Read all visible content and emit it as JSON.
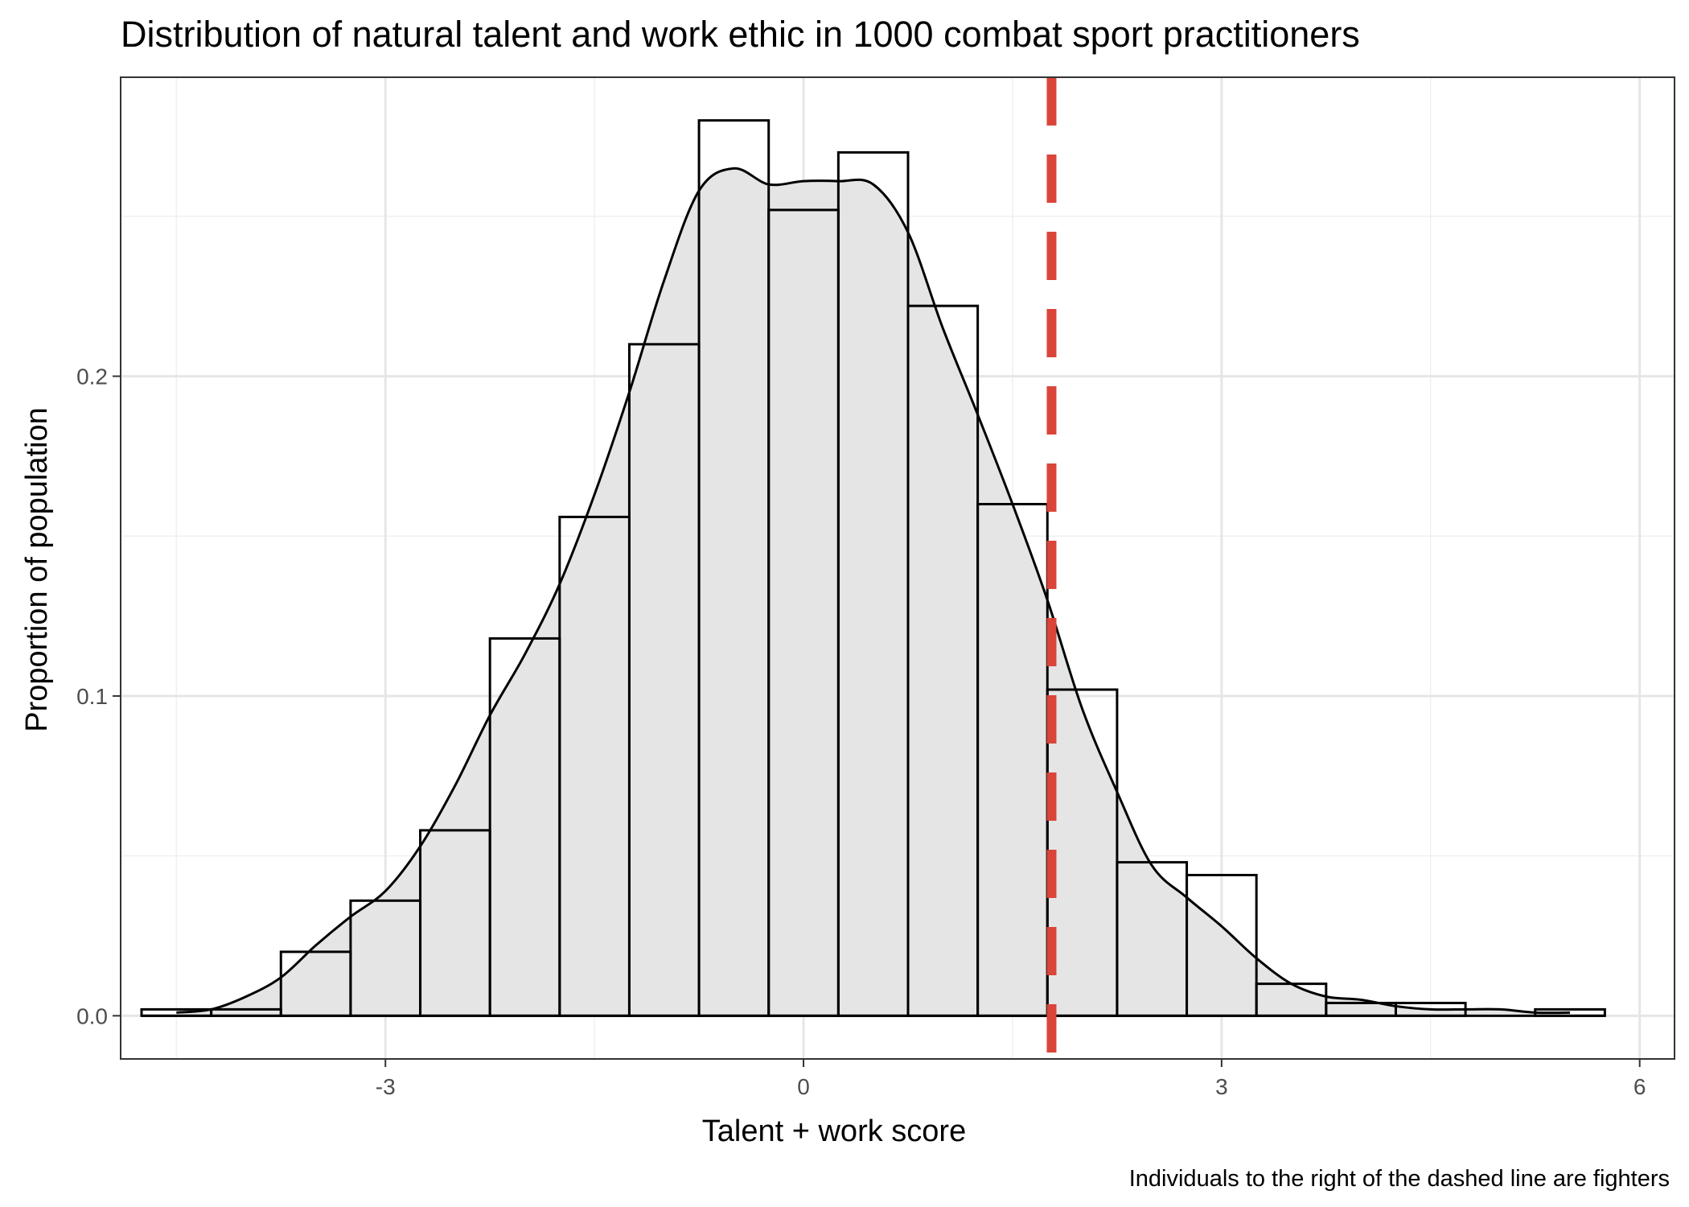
{
  "chart_data": {
    "type": "bar",
    "title": "Distribution of natural talent and work ethic in 1000 combat sport practitioners",
    "xlabel": "Talent + work score",
    "ylabel": "Proportion of population",
    "caption": "Individuals to the right of the dashed line are fighters",
    "xlim": [
      -4.9,
      6.25
    ],
    "ylim": [
      -0.0135,
      0.2935
    ],
    "x_ticks": [
      -3,
      0,
      3,
      6
    ],
    "x_tick_labels": [
      "-3",
      "0",
      "3",
      "6"
    ],
    "y_ticks": [
      0.0,
      0.1,
      0.2
    ],
    "y_tick_labels": [
      "0.0",
      "0.1",
      "0.2"
    ],
    "grid": true,
    "histogram": {
      "bin_width": 0.5,
      "bins": [
        {
          "x0": -4.75,
          "x1": -4.25,
          "value": 0.002
        },
        {
          "x0": -4.25,
          "x1": -3.75,
          "value": 0.002
        },
        {
          "x0": -3.75,
          "x1": -3.25,
          "value": 0.02
        },
        {
          "x0": -3.25,
          "x1": -2.75,
          "value": 0.036
        },
        {
          "x0": -2.75,
          "x1": -2.25,
          "value": 0.058
        },
        {
          "x0": -2.25,
          "x1": -1.75,
          "value": 0.118
        },
        {
          "x0": -1.75,
          "x1": -1.25,
          "value": 0.156
        },
        {
          "x0": -1.25,
          "x1": -0.75,
          "value": 0.21
        },
        {
          "x0": -0.75,
          "x1": -0.25,
          "value": 0.28
        },
        {
          "x0": -0.25,
          "x1": 0.25,
          "value": 0.252
        },
        {
          "x0": 0.25,
          "x1": 0.75,
          "value": 0.27
        },
        {
          "x0": 0.75,
          "x1": 1.25,
          "value": 0.222
        },
        {
          "x0": 1.25,
          "x1": 1.75,
          "value": 0.16
        },
        {
          "x0": 1.75,
          "x1": 2.25,
          "value": 0.102
        },
        {
          "x0": 2.25,
          "x1": 2.75,
          "value": 0.048
        },
        {
          "x0": 2.75,
          "x1": 3.25,
          "value": 0.044
        },
        {
          "x0": 3.25,
          "x1": 3.75,
          "value": 0.01
        },
        {
          "x0": 3.75,
          "x1": 4.25,
          "value": 0.004
        },
        {
          "x0": 4.25,
          "x1": 4.75,
          "value": 0.004
        },
        {
          "x0": 4.75,
          "x1": 5.25,
          "value": 0.0
        },
        {
          "x0": 5.25,
          "x1": 5.75,
          "value": 0.002
        }
      ]
    },
    "density": {
      "x": [
        -4.5,
        -4.25,
        -4.0,
        -3.75,
        -3.5,
        -3.25,
        -3.0,
        -2.75,
        -2.5,
        -2.25,
        -2.0,
        -1.75,
        -1.5,
        -1.25,
        -1.0,
        -0.75,
        -0.5,
        -0.25,
        0.0,
        0.25,
        0.5,
        0.75,
        1.0,
        1.25,
        1.5,
        1.75,
        2.0,
        2.25,
        2.5,
        2.75,
        3.0,
        3.25,
        3.5,
        3.75,
        4.0,
        4.25,
        4.5,
        4.75,
        5.0,
        5.25,
        5.5
      ],
      "y": [
        0.001,
        0.002,
        0.006,
        0.012,
        0.022,
        0.031,
        0.039,
        0.053,
        0.072,
        0.094,
        0.113,
        0.135,
        0.163,
        0.195,
        0.23,
        0.258,
        0.265,
        0.26,
        0.261,
        0.261,
        0.26,
        0.245,
        0.215,
        0.188,
        0.16,
        0.13,
        0.096,
        0.07,
        0.047,
        0.037,
        0.028,
        0.018,
        0.01,
        0.006,
        0.005,
        0.003,
        0.002,
        0.002,
        0.002,
        0.001,
        0.001
      ]
    },
    "cutoff_x": 1.78
  }
}
